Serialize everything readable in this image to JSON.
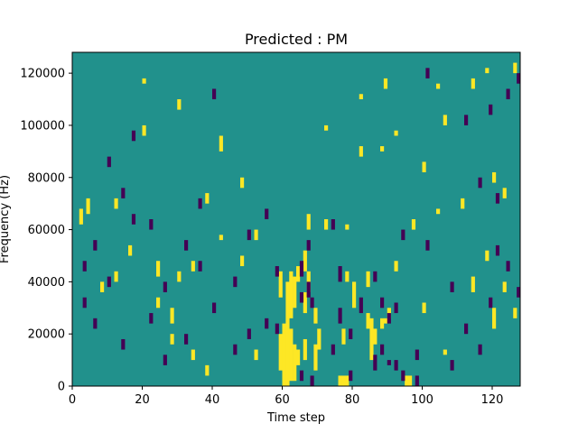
{
  "chart_data": {
    "type": "heatmap",
    "title": "Predicted : PM",
    "xlabel": "Time step",
    "ylabel": "Frequency (Hz)",
    "xlim": [
      0,
      128
    ],
    "ylim": [
      0,
      128000
    ],
    "xticks": [
      0,
      20,
      40,
      60,
      80,
      100,
      120
    ],
    "yticks": [
      0,
      20000,
      40000,
      60000,
      80000,
      100000,
      120000
    ],
    "xtick_labels": [
      "0",
      "20",
      "40",
      "60",
      "80",
      "100",
      "120"
    ],
    "ytick_labels": [
      "0",
      "20000",
      "40000",
      "60000",
      "80000",
      "100000",
      "120000"
    ],
    "grid": false,
    "legend": "none",
    "colormap": "viridis",
    "colors": {
      "background": "#21918c",
      "high": "#fde725",
      "low": "#440154"
    },
    "n_rows": 128,
    "n_cols": 128,
    "cells": [
      {
        "col": 60,
        "rows": [
          [
            0,
            24
          ]
        ],
        "v": 1
      },
      {
        "col": 61,
        "rows": [
          [
            0,
            40
          ]
        ],
        "v": 1
      },
      {
        "col": 62,
        "rows": [
          [
            2,
            22
          ],
          [
            26,
            44
          ]
        ],
        "v": 1
      },
      {
        "col": 59,
        "rows": [
          [
            6,
            20
          ],
          [
            34,
            44
          ]
        ],
        "v": 1
      },
      {
        "col": 63,
        "rows": [
          [
            2,
            16
          ],
          [
            30,
            42
          ]
        ],
        "v": 1
      },
      {
        "col": 64,
        "rows": [
          [
            8,
            14
          ],
          [
            40,
            46
          ]
        ],
        "v": 1
      },
      {
        "col": 66,
        "rows": [
          [
            10,
            18
          ],
          [
            28,
            36
          ],
          [
            44,
            52
          ]
        ],
        "v": 1
      },
      {
        "col": 67,
        "rows": [
          [
            36,
            44
          ],
          [
            60,
            66
          ]
        ],
        "v": 1
      },
      {
        "col": 69,
        "rows": [
          [
            6,
            16
          ],
          [
            24,
            30
          ]
        ],
        "v": 1
      },
      {
        "col": 70,
        "rows": [
          [
            14,
            22
          ]
        ],
        "v": 1
      },
      {
        "col": 76,
        "rows": [
          [
            0,
            4
          ]
        ],
        "v": 1
      },
      {
        "col": 77,
        "rows": [
          [
            0,
            4
          ],
          [
            16,
            22
          ]
        ],
        "v": 1
      },
      {
        "col": 78,
        "rows": [
          [
            0,
            4
          ],
          [
            40,
            44
          ],
          [
            60,
            62
          ]
        ],
        "v": 1
      },
      {
        "col": 80,
        "rows": [
          [
            30,
            40
          ]
        ],
        "v": 1
      },
      {
        "col": 84,
        "rows": [
          [
            22,
            28
          ],
          [
            38,
            44
          ]
        ],
        "v": 1
      },
      {
        "col": 85,
        "rows": [
          [
            10,
            26
          ]
        ],
        "v": 1
      },
      {
        "col": 86,
        "rows": [
          [
            16,
            22
          ]
        ],
        "v": 1
      },
      {
        "col": 88,
        "rows": [
          [
            22,
            26
          ],
          [
            90,
            92
          ]
        ],
        "v": 1
      },
      {
        "col": 89,
        "rows": [
          [
            24,
            26
          ],
          [
            114,
            118
          ]
        ],
        "v": 1
      },
      {
        "col": 90,
        "rows": [
          [
            26,
            30
          ]
        ],
        "v": 1
      },
      {
        "col": 95,
        "rows": [
          [
            0,
            4
          ]
        ],
        "v": 1
      },
      {
        "col": 96,
        "rows": [
          [
            0,
            4
          ]
        ],
        "v": 1
      },
      {
        "col": 97,
        "rows": [
          [
            60,
            64
          ]
        ],
        "v": 1
      },
      {
        "col": 104,
        "rows": [
          [
            66,
            68
          ],
          [
            114,
            116
          ]
        ],
        "v": 1
      },
      {
        "col": 111,
        "rows": [
          [
            68,
            72
          ]
        ],
        "v": 1
      },
      {
        "col": 114,
        "rows": [
          [
            114,
            118
          ],
          [
            36,
            42
          ]
        ],
        "v": 1
      },
      {
        "col": 120,
        "rows": [
          [
            78,
            82
          ],
          [
            22,
            30
          ]
        ],
        "v": 1
      },
      {
        "col": 123,
        "rows": [
          [
            72,
            76
          ],
          [
            36,
            40
          ]
        ],
        "v": 1
      },
      {
        "col": 2,
        "rows": [
          [
            62,
            68
          ]
        ],
        "v": 1
      },
      {
        "col": 4,
        "rows": [
          [
            66,
            72
          ]
        ],
        "v": 1
      },
      {
        "col": 8,
        "rows": [
          [
            36,
            40
          ]
        ],
        "v": 1
      },
      {
        "col": 12,
        "rows": [
          [
            68,
            72
          ],
          [
            40,
            44
          ]
        ],
        "v": 1
      },
      {
        "col": 16,
        "rows": [
          [
            50,
            54
          ]
        ],
        "v": 1
      },
      {
        "col": 20,
        "rows": [
          [
            96,
            100
          ],
          [
            116,
            118
          ]
        ],
        "v": 1
      },
      {
        "col": 24,
        "rows": [
          [
            42,
            48
          ],
          [
            30,
            34
          ]
        ],
        "v": 1
      },
      {
        "col": 28,
        "rows": [
          [
            24,
            30
          ],
          [
            16,
            20
          ]
        ],
        "v": 1
      },
      {
        "col": 30,
        "rows": [
          [
            106,
            110
          ],
          [
            40,
            44
          ]
        ],
        "v": 1
      },
      {
        "col": 34,
        "rows": [
          [
            44,
            48
          ],
          [
            10,
            14
          ]
        ],
        "v": 1
      },
      {
        "col": 38,
        "rows": [
          [
            70,
            74
          ],
          [
            4,
            8
          ]
        ],
        "v": 1
      },
      {
        "col": 42,
        "rows": [
          [
            90,
            96
          ],
          [
            56,
            58
          ]
        ],
        "v": 1
      },
      {
        "col": 48,
        "rows": [
          [
            46,
            50
          ],
          [
            76,
            80
          ]
        ],
        "v": 1
      },
      {
        "col": 52,
        "rows": [
          [
            10,
            14
          ],
          [
            56,
            60
          ]
        ],
        "v": 1
      },
      {
        "col": 72,
        "rows": [
          [
            60,
            64
          ],
          [
            98,
            100
          ]
        ],
        "v": 1
      },
      {
        "col": 82,
        "rows": [
          [
            88,
            92
          ],
          [
            110,
            112
          ]
        ],
        "v": 1
      },
      {
        "col": 92,
        "rows": [
          [
            44,
            48
          ],
          [
            96,
            98
          ]
        ],
        "v": 1
      },
      {
        "col": 100,
        "rows": [
          [
            82,
            86
          ],
          [
            28,
            32
          ]
        ],
        "v": 1
      },
      {
        "col": 106,
        "rows": [
          [
            100,
            104
          ],
          [
            12,
            14
          ]
        ],
        "v": 1
      },
      {
        "col": 118,
        "rows": [
          [
            120,
            122
          ],
          [
            48,
            52
          ]
        ],
        "v": 1
      },
      {
        "col": 126,
        "rows": [
          [
            26,
            30
          ],
          [
            120,
            124
          ]
        ],
        "v": 1
      },
      {
        "col": 65,
        "rows": [
          [
            2,
            6
          ],
          [
            42,
            48
          ],
          [
            32,
            36
          ]
        ],
        "v": -1
      },
      {
        "col": 67,
        "rows": [
          [
            34,
            40
          ],
          [
            52,
            56
          ]
        ],
        "v": -1
      },
      {
        "col": 68,
        "rows": [
          [
            0,
            4
          ],
          [
            30,
            34
          ]
        ],
        "v": -1
      },
      {
        "col": 74,
        "rows": [
          [
            60,
            64
          ],
          [
            12,
            16
          ]
        ],
        "v": -1
      },
      {
        "col": 76,
        "rows": [
          [
            40,
            46
          ],
          [
            24,
            30
          ]
        ],
        "v": -1
      },
      {
        "col": 79,
        "rows": [
          [
            2,
            6
          ],
          [
            18,
            22
          ]
        ],
        "v": -1
      },
      {
        "col": 82,
        "rows": [
          [
            28,
            34
          ]
        ],
        "v": -1
      },
      {
        "col": 86,
        "rows": [
          [
            6,
            12
          ],
          [
            40,
            44
          ]
        ],
        "v": -1
      },
      {
        "col": 88,
        "rows": [
          [
            30,
            34
          ],
          [
            12,
            16
          ]
        ],
        "v": -1
      },
      {
        "col": 90,
        "rows": [
          [
            24,
            28
          ],
          [
            8,
            10
          ]
        ],
        "v": -1
      },
      {
        "col": 92,
        "rows": [
          [
            6,
            10
          ],
          [
            28,
            32
          ]
        ],
        "v": -1
      },
      {
        "col": 94,
        "rows": [
          [
            2,
            6
          ],
          [
            56,
            60
          ]
        ],
        "v": -1
      },
      {
        "col": 98,
        "rows": [
          [
            0,
            4
          ],
          [
            10,
            14
          ]
        ],
        "v": -1
      },
      {
        "col": 101,
        "rows": [
          [
            52,
            56
          ],
          [
            118,
            122
          ]
        ],
        "v": -1
      },
      {
        "col": 108,
        "rows": [
          [
            6,
            10
          ],
          [
            36,
            40
          ]
        ],
        "v": -1
      },
      {
        "col": 112,
        "rows": [
          [
            100,
            104
          ],
          [
            20,
            24
          ]
        ],
        "v": -1
      },
      {
        "col": 116,
        "rows": [
          [
            76,
            80
          ],
          [
            12,
            16
          ]
        ],
        "v": -1
      },
      {
        "col": 119,
        "rows": [
          [
            104,
            108
          ],
          [
            30,
            34
          ]
        ],
        "v": -1
      },
      {
        "col": 121,
        "rows": [
          [
            70,
            74
          ],
          [
            50,
            54
          ]
        ],
        "v": -1
      },
      {
        "col": 124,
        "rows": [
          [
            110,
            114
          ],
          [
            44,
            48
          ]
        ],
        "v": -1
      },
      {
        "col": 127,
        "rows": [
          [
            34,
            38
          ],
          [
            116,
            120
          ]
        ],
        "v": -1
      },
      {
        "col": 3,
        "rows": [
          [
            30,
            34
          ],
          [
            44,
            48
          ]
        ],
        "v": -1
      },
      {
        "col": 6,
        "rows": [
          [
            52,
            56
          ],
          [
            22,
            26
          ]
        ],
        "v": -1
      },
      {
        "col": 10,
        "rows": [
          [
            38,
            42
          ],
          [
            84,
            88
          ]
        ],
        "v": -1
      },
      {
        "col": 14,
        "rows": [
          [
            14,
            18
          ],
          [
            72,
            76
          ]
        ],
        "v": -1
      },
      {
        "col": 17,
        "rows": [
          [
            94,
            98
          ],
          [
            62,
            66
          ]
        ],
        "v": -1
      },
      {
        "col": 22,
        "rows": [
          [
            60,
            64
          ],
          [
            24,
            28
          ]
        ],
        "v": -1
      },
      {
        "col": 26,
        "rows": [
          [
            36,
            40
          ],
          [
            8,
            12
          ]
        ],
        "v": -1
      },
      {
        "col": 32,
        "rows": [
          [
            16,
            20
          ],
          [
            52,
            56
          ]
        ],
        "v": -1
      },
      {
        "col": 36,
        "rows": [
          [
            68,
            72
          ],
          [
            44,
            48
          ]
        ],
        "v": -1
      },
      {
        "col": 40,
        "rows": [
          [
            28,
            32
          ],
          [
            110,
            114
          ]
        ],
        "v": -1
      },
      {
        "col": 46,
        "rows": [
          [
            12,
            16
          ],
          [
            38,
            42
          ]
        ],
        "v": -1
      },
      {
        "col": 50,
        "rows": [
          [
            56,
            60
          ],
          [
            18,
            22
          ]
        ],
        "v": -1
      },
      {
        "col": 55,
        "rows": [
          [
            64,
            68
          ],
          [
            22,
            26
          ]
        ],
        "v": -1
      },
      {
        "col": 58,
        "rows": [
          [
            20,
            24
          ],
          [
            42,
            46
          ]
        ],
        "v": -1
      }
    ]
  }
}
